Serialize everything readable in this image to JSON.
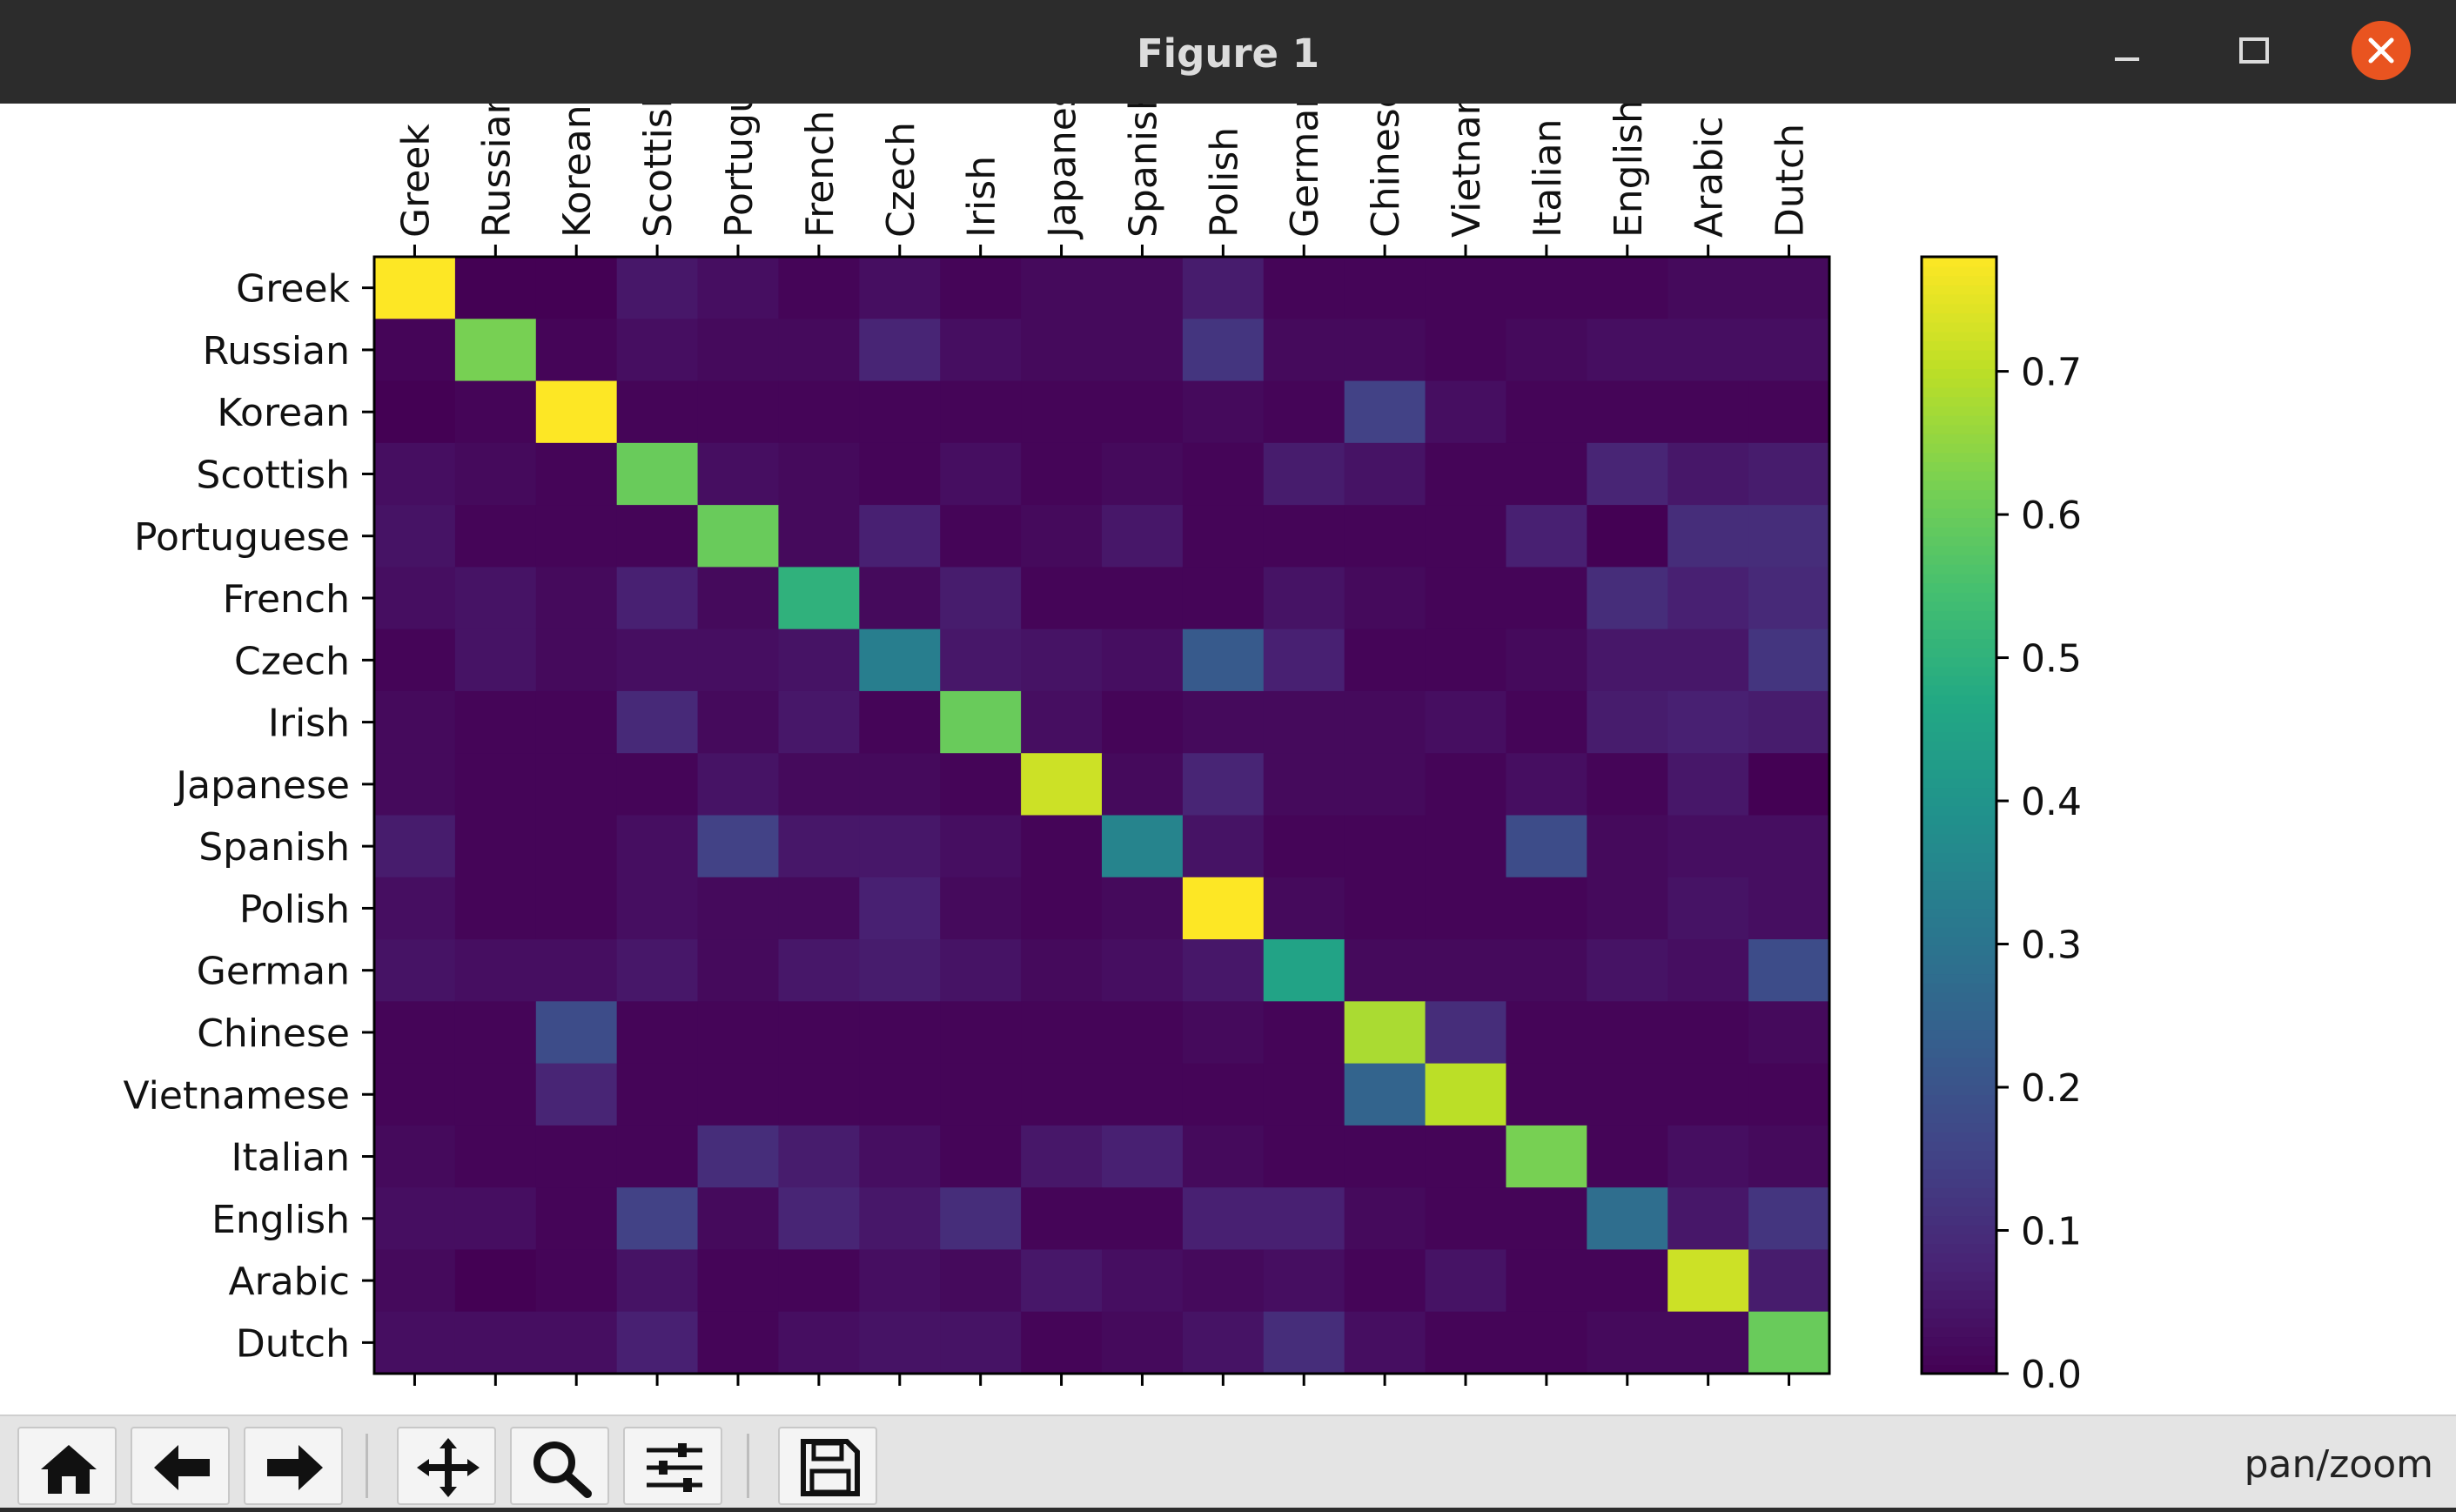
{
  "window": {
    "title": "Figure 1",
    "status_label": "pan/zoom"
  },
  "toolbar": {
    "buttons": [
      {
        "icon": "home-icon",
        "name": "home-button"
      },
      {
        "icon": "back-arrow-icon",
        "name": "back-button"
      },
      {
        "icon": "forward-arrow-icon",
        "name": "forward-button"
      },
      {
        "icon": "pan-move-icon",
        "name": "pan-button"
      },
      {
        "icon": "zoom-magnifier-icon",
        "name": "zoom-button"
      },
      {
        "icon": "configure-subplots-icon",
        "name": "configure-button"
      },
      {
        "icon": "save-floppy-icon",
        "name": "save-button"
      }
    ]
  },
  "chart_data": {
    "type": "heatmap",
    "colormap": "viridis",
    "x_tick_labels": [
      "Greek",
      "Russian",
      "Korean",
      "Scottish",
      "Portugu",
      "French",
      "Czech",
      "Irish",
      "Japanes",
      "Spanish",
      "Polish",
      "Germar",
      "Chinese",
      "Vietnam",
      "Italian",
      "English",
      "Arabic",
      "Dutch"
    ],
    "y_tick_labels": [
      "Greek",
      "Russian",
      "Korean",
      "Scottish",
      "Portuguese",
      "French",
      "Czech",
      "Irish",
      "Japanese",
      "Spanish",
      "Polish",
      "German",
      "Chinese",
      "Vietnamese",
      "Italian",
      "English",
      "Arabic",
      "Dutch"
    ],
    "x_ticks_position": "top",
    "x_tick_rotation": 90,
    "values": [
      [
        0.78,
        0.0,
        0.0,
        0.05,
        0.03,
        0.01,
        0.03,
        0.01,
        0.02,
        0.02,
        0.06,
        0.01,
        0.01,
        0.01,
        0.01,
        0.01,
        0.02,
        0.02
      ],
      [
        0.01,
        0.62,
        0.01,
        0.03,
        0.02,
        0.02,
        0.08,
        0.03,
        0.02,
        0.02,
        0.12,
        0.02,
        0.02,
        0.01,
        0.02,
        0.03,
        0.03,
        0.03
      ],
      [
        0.0,
        0.01,
        0.78,
        0.01,
        0.01,
        0.01,
        0.01,
        0.01,
        0.01,
        0.01,
        0.02,
        0.01,
        0.15,
        0.03,
        0.01,
        0.01,
        0.01,
        0.01
      ],
      [
        0.03,
        0.02,
        0.01,
        0.6,
        0.03,
        0.02,
        0.01,
        0.03,
        0.01,
        0.02,
        0.01,
        0.06,
        0.04,
        0.01,
        0.01,
        0.08,
        0.05,
        0.06
      ],
      [
        0.04,
        0.01,
        0.01,
        0.01,
        0.6,
        0.02,
        0.07,
        0.01,
        0.02,
        0.05,
        0.01,
        0.01,
        0.01,
        0.01,
        0.07,
        0.0,
        0.1,
        0.1
      ],
      [
        0.03,
        0.04,
        0.02,
        0.07,
        0.02,
        0.5,
        0.02,
        0.06,
        0.01,
        0.01,
        0.01,
        0.04,
        0.02,
        0.01,
        0.01,
        0.1,
        0.07,
        0.09
      ],
      [
        0.01,
        0.04,
        0.02,
        0.03,
        0.03,
        0.04,
        0.33,
        0.05,
        0.04,
        0.03,
        0.22,
        0.07,
        0.01,
        0.01,
        0.02,
        0.05,
        0.05,
        0.12
      ],
      [
        0.02,
        0.01,
        0.01,
        0.09,
        0.02,
        0.05,
        0.01,
        0.6,
        0.03,
        0.01,
        0.02,
        0.02,
        0.02,
        0.03,
        0.01,
        0.06,
        0.07,
        0.06
      ],
      [
        0.02,
        0.01,
        0.01,
        0.01,
        0.04,
        0.02,
        0.02,
        0.01,
        0.72,
        0.02,
        0.08,
        0.02,
        0.02,
        0.01,
        0.03,
        0.01,
        0.05,
        0.0
      ],
      [
        0.06,
        0.01,
        0.01,
        0.03,
        0.15,
        0.05,
        0.05,
        0.03,
        0.01,
        0.35,
        0.04,
        0.01,
        0.01,
        0.01,
        0.18,
        0.02,
        0.03,
        0.03
      ],
      [
        0.03,
        0.01,
        0.01,
        0.03,
        0.02,
        0.02,
        0.07,
        0.02,
        0.01,
        0.02,
        0.78,
        0.02,
        0.01,
        0.01,
        0.01,
        0.02,
        0.04,
        0.03
      ],
      [
        0.04,
        0.03,
        0.03,
        0.05,
        0.02,
        0.05,
        0.06,
        0.04,
        0.02,
        0.03,
        0.05,
        0.45,
        0.02,
        0.02,
        0.02,
        0.04,
        0.03,
        0.18
      ],
      [
        0.01,
        0.01,
        0.18,
        0.01,
        0.01,
        0.01,
        0.01,
        0.01,
        0.01,
        0.01,
        0.02,
        0.01,
        0.68,
        0.1,
        0.01,
        0.01,
        0.01,
        0.02
      ],
      [
        0.01,
        0.01,
        0.08,
        0.01,
        0.01,
        0.01,
        0.01,
        0.01,
        0.01,
        0.01,
        0.01,
        0.01,
        0.25,
        0.7,
        0.01,
        0.01,
        0.01,
        0.01
      ],
      [
        0.02,
        0.01,
        0.01,
        0.01,
        0.1,
        0.06,
        0.03,
        0.01,
        0.05,
        0.07,
        0.02,
        0.01,
        0.01,
        0.01,
        0.62,
        0.01,
        0.03,
        0.02
      ],
      [
        0.03,
        0.03,
        0.01,
        0.15,
        0.02,
        0.08,
        0.05,
        0.1,
        0.01,
        0.01,
        0.07,
        0.07,
        0.02,
        0.01,
        0.01,
        0.28,
        0.05,
        0.12
      ],
      [
        0.02,
        0.0,
        0.01,
        0.04,
        0.01,
        0.01,
        0.03,
        0.02,
        0.05,
        0.03,
        0.02,
        0.03,
        0.01,
        0.04,
        0.01,
        0.01,
        0.72,
        0.06
      ],
      [
        0.03,
        0.03,
        0.03,
        0.07,
        0.01,
        0.03,
        0.04,
        0.04,
        0.01,
        0.02,
        0.04,
        0.1,
        0.03,
        0.01,
        0.01,
        0.02,
        0.02,
        0.6
      ]
    ],
    "colorbar": {
      "vmin": 0.0,
      "vmax": 0.78,
      "ticks": [
        0.0,
        0.1,
        0.2,
        0.3,
        0.4,
        0.5,
        0.6,
        0.7
      ],
      "tick_labels": [
        "0.0",
        "0.1",
        "0.2",
        "0.3",
        "0.4",
        "0.5",
        "0.6",
        "0.7"
      ]
    }
  }
}
